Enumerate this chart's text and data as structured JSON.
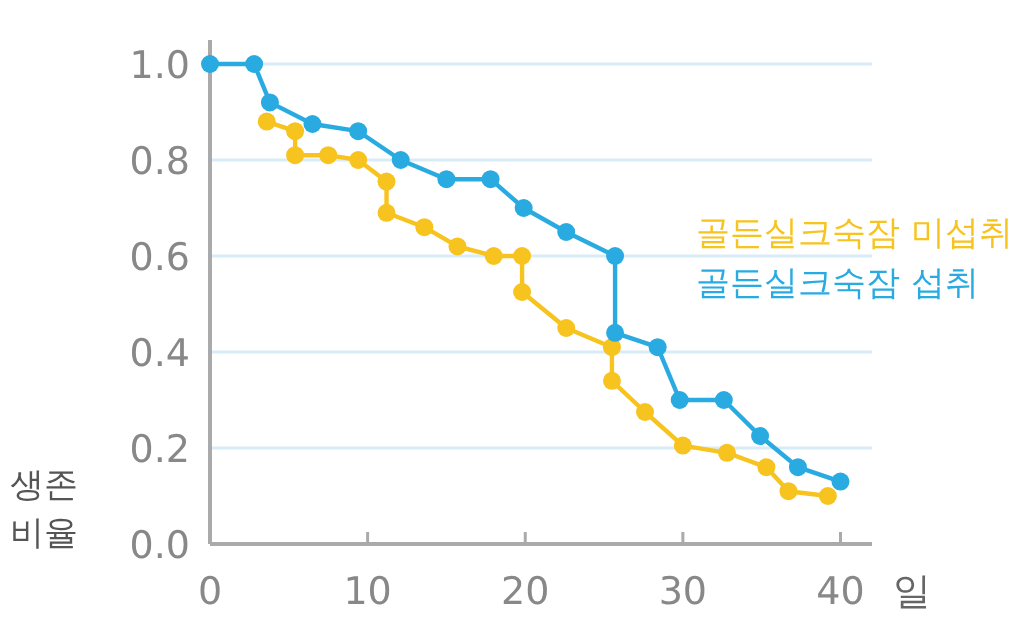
{
  "chart_data": {
    "type": "line",
    "xlabel": "일",
    "ylabel": "생존 비율",
    "xlim": [
      0,
      42
    ],
    "ylim": [
      0,
      1.05
    ],
    "xticks": [
      0,
      10,
      20,
      30,
      40
    ],
    "yticks": [
      {
        "value": 0,
        "label": "0.0"
      },
      {
        "value": 0.2,
        "label": "0.2"
      },
      {
        "value": 0.4,
        "label": "0.4"
      },
      {
        "value": 0.6,
        "label": "0.6"
      },
      {
        "value": 0.8,
        "label": "0.8"
      },
      {
        "value": 1,
        "label": "1.0"
      }
    ],
    "grid": "y",
    "legend": "right",
    "marker": "circle",
    "line_style": "solid",
    "series": [
      {
        "name": "골든실크숙잠 미섭취",
        "color": "#f7c31e",
        "x": [
          3.6,
          5.4,
          5.4,
          7.5,
          9.4,
          11.2,
          11.2,
          13.6,
          15.7,
          18,
          19.8,
          19.8,
          22.6,
          25.5,
          25.5,
          27.6,
          30,
          32.8,
          35.3,
          36.7,
          39.2
        ],
        "values": [
          0.88,
          0.86,
          0.81,
          0.81,
          0.8,
          0.755,
          0.69,
          0.66,
          0.62,
          0.6,
          0.6,
          0.525,
          0.45,
          0.41,
          0.34,
          0.275,
          0.205,
          0.19,
          0.16,
          0.11,
          0.1
        ]
      },
      {
        "name": "골든실크숙잠 섭취",
        "color": "#29abe2",
        "x": [
          0,
          2.8,
          3.8,
          6.5,
          9.4,
          12.1,
          15,
          17.8,
          19.9,
          22.6,
          25.7,
          25.7,
          28.4,
          29.8,
          32.6,
          34.9,
          37.3,
          40
        ],
        "values": [
          1.0,
          1.0,
          0.92,
          0.875,
          0.86,
          0.8,
          0.76,
          0.76,
          0.7,
          0.65,
          0.6,
          0.44,
          0.41,
          0.3,
          0.3,
          0.225,
          0.16,
          0.13
        ]
      }
    ]
  }
}
